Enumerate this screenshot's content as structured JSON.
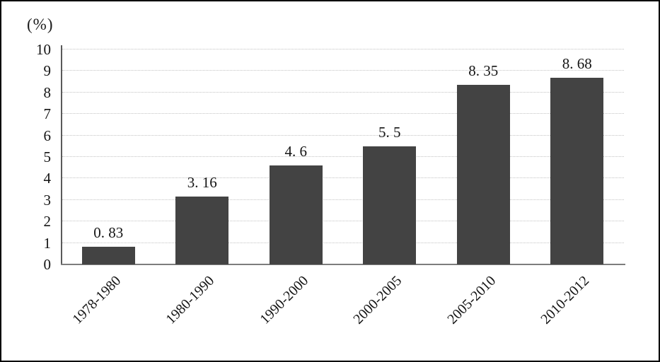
{
  "chart_data": {
    "type": "bar",
    "title": "",
    "ylabel": "(%)",
    "xlabel": "",
    "categories": [
      "1978-1980",
      "1980-1990",
      "1990-2000",
      "2000-2005",
      "2005-2010",
      "2010-2012"
    ],
    "values": [
      0.83,
      3.16,
      4.6,
      5.5,
      8.35,
      8.68
    ],
    "value_labels": [
      "0. 83",
      "3. 16",
      "4. 6",
      "5. 5",
      "8. 35",
      "8. 68"
    ],
    "ylim": [
      0,
      10
    ],
    "ytick_step": 1,
    "ytick_labels": [
      "0",
      "1",
      "2",
      "3",
      "4",
      "5",
      "6",
      "7",
      "8",
      "9",
      "10"
    ],
    "grid": "horizontal-dotted",
    "legend": "none",
    "xtick_rotation_deg": 45
  },
  "colors": {
    "bar": "#434343",
    "gridline": "#c3c3c3",
    "y_axis": "#5a5a5a",
    "x_axis": "#7d7d7d",
    "text": "#141414",
    "frame_border": "#000000",
    "background": "#ffffff"
  }
}
